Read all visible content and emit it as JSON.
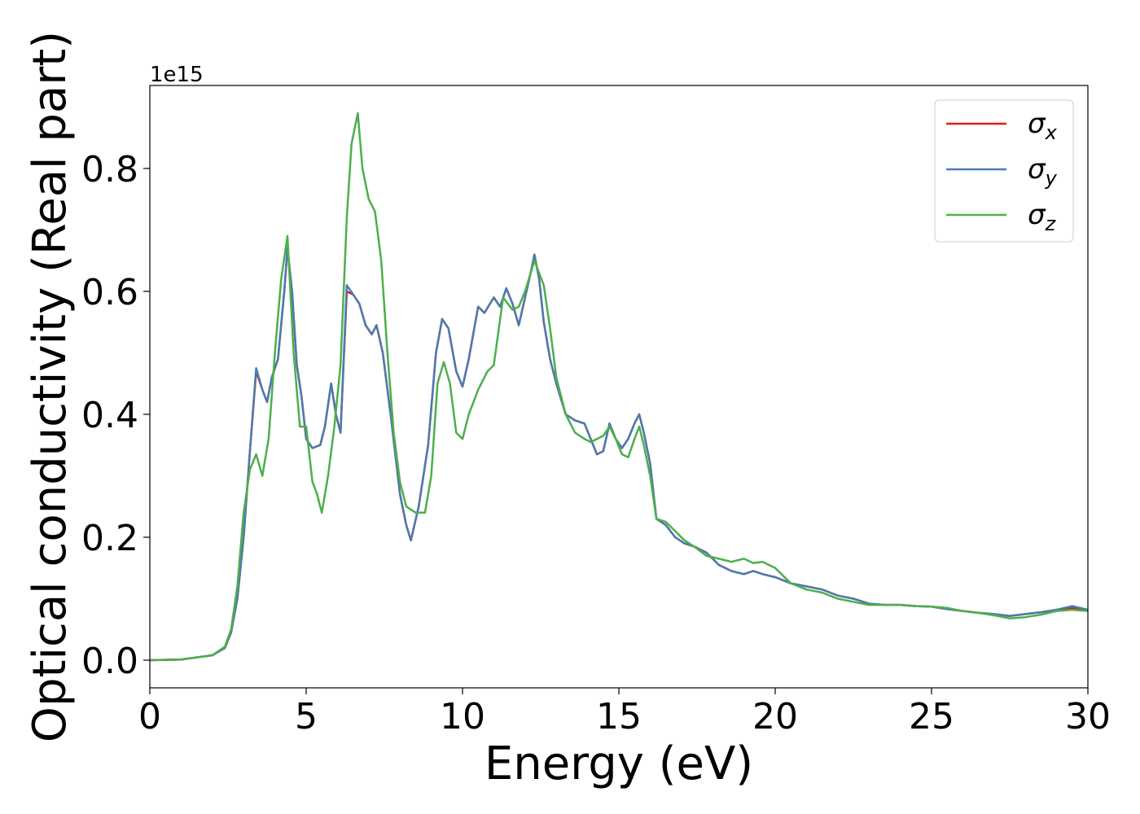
{
  "chart_data": {
    "type": "line",
    "title": "",
    "xlabel": "Energy (eV)",
    "ylabel": "Optical conductivity (Real part)",
    "offset_text": "1e15",
    "xlim": [
      0,
      30
    ],
    "ylim": [
      -0.045,
      0.935
    ],
    "y_scale_factor": 1000000000000000.0,
    "xticks": [
      0,
      5,
      10,
      15,
      20,
      25,
      30
    ],
    "xtick_labels": [
      "0",
      "5",
      "10",
      "15",
      "20",
      "25",
      "30"
    ],
    "yticks": [
      0.0,
      0.2,
      0.4,
      0.6,
      0.8
    ],
    "ytick_labels": [
      "0.0",
      "0.2",
      "0.4",
      "0.6",
      "0.8"
    ],
    "grid": false,
    "legend_position": "top-right",
    "series": [
      {
        "name": "σx",
        "legend_symbol": "σ",
        "legend_subscript": "x",
        "color": "#e41a1c",
        "x": [
          0,
          1,
          2,
          2.4,
          2.6,
          2.8,
          3.0,
          3.2,
          3.4,
          3.6,
          3.75,
          3.9,
          4.1,
          4.3,
          4.4,
          4.55,
          4.7,
          4.85,
          5.0,
          5.2,
          5.45,
          5.6,
          5.8,
          5.95,
          6.1,
          6.3,
          6.5,
          6.7,
          6.9,
          7.1,
          7.25,
          7.45,
          7.7,
          8.0,
          8.2,
          8.35,
          8.6,
          8.9,
          9.15,
          9.35,
          9.55,
          9.8,
          10.0,
          10.2,
          10.5,
          10.7,
          11.0,
          11.2,
          11.4,
          11.6,
          11.8,
          12.0,
          12.2,
          12.3,
          12.45,
          12.6,
          12.8,
          13.0,
          13.3,
          13.6,
          13.9,
          14.1,
          14.3,
          14.5,
          14.7,
          14.9,
          15.1,
          15.3,
          15.5,
          15.65,
          15.8,
          16.0,
          16.2,
          16.5,
          16.8,
          17.1,
          17.4,
          17.8,
          18.2,
          18.6,
          19.0,
          19.3,
          19.6,
          20.0,
          20.5,
          21.0,
          21.5,
          22.0,
          22.5,
          23.0,
          23.5,
          24.0,
          24.5,
          25.0,
          25.5,
          26.0,
          26.5,
          27.0,
          27.5,
          28.0,
          28.5,
          29.0,
          29.5,
          30.0
        ],
        "y": [
          0.0,
          0.001,
          0.008,
          0.02,
          0.045,
          0.1,
          0.2,
          0.34,
          0.47,
          0.44,
          0.42,
          0.46,
          0.49,
          0.6,
          0.67,
          0.6,
          0.48,
          0.43,
          0.36,
          0.345,
          0.35,
          0.38,
          0.45,
          0.4,
          0.37,
          0.6,
          0.595,
          0.58,
          0.545,
          0.53,
          0.545,
          0.5,
          0.4,
          0.27,
          0.22,
          0.195,
          0.25,
          0.35,
          0.5,
          0.555,
          0.54,
          0.47,
          0.445,
          0.49,
          0.575,
          0.565,
          0.59,
          0.575,
          0.605,
          0.58,
          0.545,
          0.59,
          0.635,
          0.66,
          0.62,
          0.55,
          0.49,
          0.45,
          0.4,
          0.39,
          0.385,
          0.36,
          0.335,
          0.34,
          0.385,
          0.36,
          0.345,
          0.36,
          0.385,
          0.4,
          0.37,
          0.32,
          0.23,
          0.22,
          0.2,
          0.19,
          0.185,
          0.175,
          0.155,
          0.145,
          0.14,
          0.145,
          0.14,
          0.135,
          0.125,
          0.12,
          0.115,
          0.105,
          0.1,
          0.092,
          0.09,
          0.09,
          0.088,
          0.087,
          0.083,
          0.08,
          0.077,
          0.075,
          0.072,
          0.075,
          0.078,
          0.082,
          0.085,
          0.082
        ]
      },
      {
        "name": "σy",
        "legend_symbol": "σ",
        "legend_subscript": "y",
        "color": "#4a7bb0",
        "x": [
          0,
          1,
          2,
          2.4,
          2.6,
          2.8,
          3.0,
          3.2,
          3.4,
          3.6,
          3.75,
          3.9,
          4.1,
          4.3,
          4.4,
          4.55,
          4.7,
          4.85,
          5.0,
          5.2,
          5.45,
          5.6,
          5.8,
          5.95,
          6.1,
          6.3,
          6.5,
          6.7,
          6.9,
          7.1,
          7.25,
          7.45,
          7.7,
          8.0,
          8.2,
          8.35,
          8.6,
          8.9,
          9.15,
          9.35,
          9.55,
          9.8,
          10.0,
          10.2,
          10.5,
          10.7,
          11.0,
          11.2,
          11.4,
          11.6,
          11.8,
          12.0,
          12.2,
          12.3,
          12.45,
          12.6,
          12.8,
          13.0,
          13.3,
          13.6,
          13.9,
          14.1,
          14.3,
          14.5,
          14.7,
          14.9,
          15.1,
          15.3,
          15.5,
          15.65,
          15.8,
          16.0,
          16.2,
          16.5,
          16.8,
          17.1,
          17.4,
          17.8,
          18.2,
          18.6,
          19.0,
          19.3,
          19.6,
          20.0,
          20.5,
          21.0,
          21.5,
          22.0,
          22.5,
          23.0,
          23.5,
          24.0,
          24.5,
          25.0,
          25.5,
          26.0,
          26.5,
          27.0,
          27.5,
          28.0,
          28.5,
          29.0,
          29.5,
          30.0
        ],
        "y": [
          0.0,
          0.001,
          0.008,
          0.02,
          0.045,
          0.1,
          0.2,
          0.34,
          0.475,
          0.44,
          0.42,
          0.46,
          0.49,
          0.6,
          0.67,
          0.6,
          0.48,
          0.43,
          0.36,
          0.345,
          0.35,
          0.38,
          0.45,
          0.4,
          0.37,
          0.61,
          0.595,
          0.58,
          0.545,
          0.53,
          0.545,
          0.5,
          0.4,
          0.27,
          0.22,
          0.195,
          0.25,
          0.35,
          0.5,
          0.555,
          0.54,
          0.47,
          0.445,
          0.49,
          0.575,
          0.565,
          0.59,
          0.575,
          0.605,
          0.58,
          0.545,
          0.59,
          0.635,
          0.66,
          0.62,
          0.55,
          0.49,
          0.45,
          0.4,
          0.39,
          0.385,
          0.36,
          0.335,
          0.34,
          0.385,
          0.36,
          0.345,
          0.36,
          0.385,
          0.4,
          0.37,
          0.32,
          0.23,
          0.22,
          0.2,
          0.19,
          0.185,
          0.175,
          0.155,
          0.145,
          0.14,
          0.145,
          0.14,
          0.135,
          0.125,
          0.12,
          0.115,
          0.105,
          0.1,
          0.092,
          0.09,
          0.09,
          0.088,
          0.087,
          0.083,
          0.08,
          0.077,
          0.075,
          0.072,
          0.075,
          0.078,
          0.082,
          0.088,
          0.082
        ]
      },
      {
        "name": "σz",
        "legend_symbol": "σ",
        "legend_subscript": "z",
        "color": "#4daf4a",
        "x": [
          0,
          1,
          2,
          2.4,
          2.6,
          2.8,
          3.0,
          3.2,
          3.4,
          3.6,
          3.8,
          4.0,
          4.2,
          4.4,
          4.6,
          4.8,
          5.0,
          5.2,
          5.35,
          5.5,
          5.7,
          5.9,
          6.1,
          6.3,
          6.45,
          6.65,
          6.8,
          7.0,
          7.2,
          7.4,
          7.6,
          7.8,
          8.0,
          8.2,
          8.5,
          8.8,
          9.0,
          9.2,
          9.4,
          9.6,
          9.8,
          10.0,
          10.2,
          10.5,
          10.8,
          11.0,
          11.3,
          11.6,
          11.8,
          12.0,
          12.3,
          12.6,
          12.8,
          13.0,
          13.3,
          13.6,
          13.9,
          14.1,
          14.3,
          14.5,
          14.7,
          14.9,
          15.1,
          15.3,
          15.5,
          15.65,
          15.8,
          16.0,
          16.2,
          16.5,
          16.8,
          17.1,
          17.4,
          17.8,
          18.2,
          18.6,
          19.0,
          19.3,
          19.6,
          20.0,
          20.5,
          21.0,
          21.5,
          22.0,
          22.5,
          23.0,
          23.5,
          24.0,
          24.5,
          25.0,
          25.5,
          26.0,
          26.5,
          27.0,
          27.5,
          28.0,
          28.5,
          29.0,
          29.5,
          30.0
        ],
        "y": [
          0.0,
          0.001,
          0.008,
          0.022,
          0.05,
          0.12,
          0.24,
          0.31,
          0.335,
          0.3,
          0.36,
          0.5,
          0.62,
          0.69,
          0.5,
          0.38,
          0.38,
          0.29,
          0.27,
          0.24,
          0.3,
          0.38,
          0.48,
          0.72,
          0.84,
          0.89,
          0.8,
          0.75,
          0.73,
          0.65,
          0.5,
          0.37,
          0.29,
          0.25,
          0.24,
          0.24,
          0.3,
          0.45,
          0.485,
          0.45,
          0.37,
          0.36,
          0.4,
          0.44,
          0.47,
          0.48,
          0.59,
          0.57,
          0.575,
          0.6,
          0.65,
          0.61,
          0.54,
          0.46,
          0.4,
          0.37,
          0.36,
          0.355,
          0.36,
          0.365,
          0.38,
          0.36,
          0.335,
          0.33,
          0.36,
          0.38,
          0.35,
          0.3,
          0.23,
          0.225,
          0.21,
          0.195,
          0.185,
          0.17,
          0.165,
          0.16,
          0.165,
          0.158,
          0.16,
          0.15,
          0.125,
          0.115,
          0.11,
          0.1,
          0.095,
          0.09,
          0.09,
          0.09,
          0.088,
          0.087,
          0.085,
          0.08,
          0.077,
          0.073,
          0.068,
          0.07,
          0.074,
          0.08,
          0.082,
          0.08
        ]
      }
    ]
  }
}
